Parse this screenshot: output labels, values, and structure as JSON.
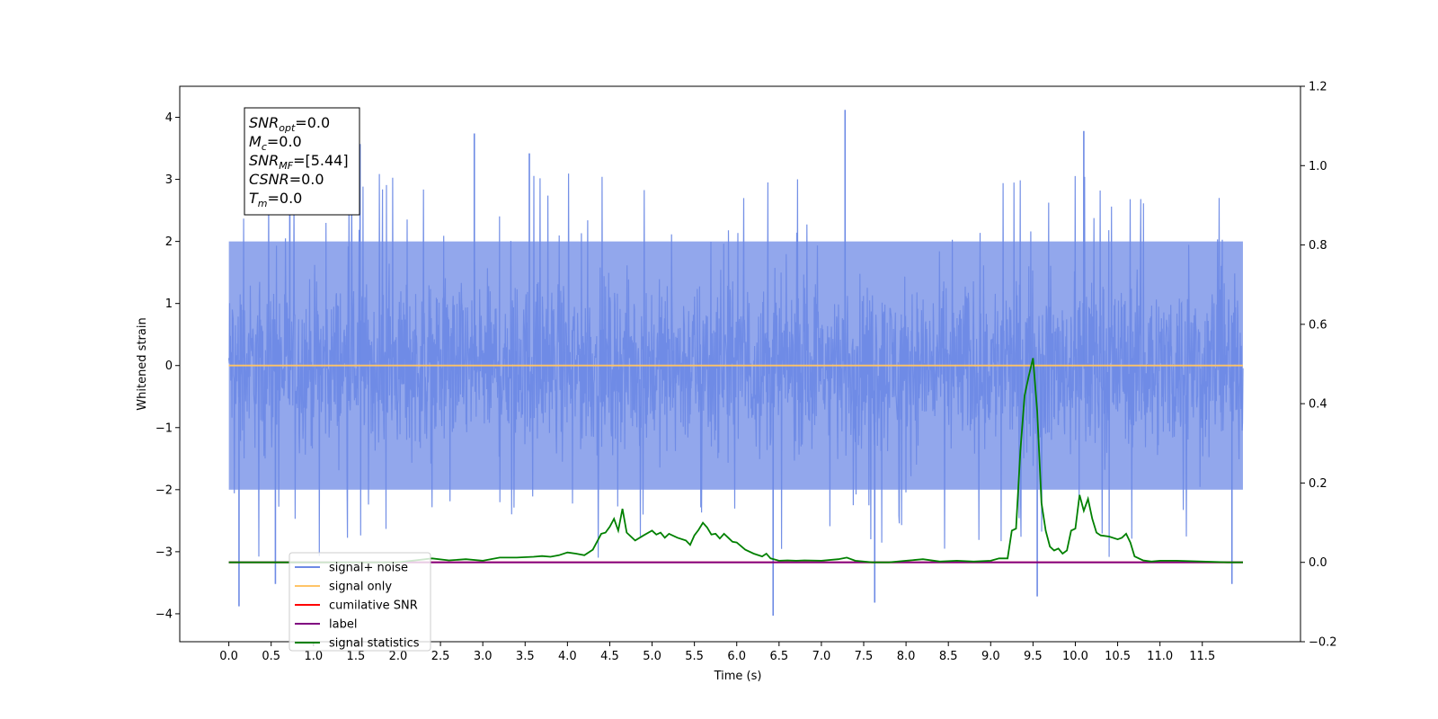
{
  "chart_data": {
    "type": "line",
    "title": "",
    "xlabel": "Time (s)",
    "ylabel": "Whitened strain",
    "xlim": [
      -0.58,
      12.66
    ],
    "ylim": [
      -4.45,
      4.5
    ],
    "ylim_right": [
      -0.2,
      1.2
    ],
    "x_ticks": [
      "0.0",
      "0.5",
      "1.0",
      "1.5",
      "2.0",
      "2.5",
      "3.0",
      "3.5",
      "4.0",
      "4.5",
      "5.0",
      "5.5",
      "6.0",
      "6.5",
      "7.0",
      "7.5",
      "8.0",
      "8.5",
      "9.0",
      "9.5",
      "10.0",
      "10.5",
      "11.0",
      "11.5"
    ],
    "y_ticks": [
      "4",
      "3",
      "2",
      "1",
      "0",
      "−1",
      "−2",
      "−3",
      "−4"
    ],
    "y_ticks_right": [
      "1.2",
      "1.0",
      "0.8",
      "0.6",
      "0.4",
      "0.2",
      "0.0",
      "−0.2"
    ],
    "grid": false,
    "legend_position": "lower-left",
    "info_box": {
      "position": "top-left",
      "lines": [
        {
          "main": "SNR",
          "sub": "opt",
          "value": "=0.0"
        },
        {
          "main": "M",
          "sub": "c",
          "value": "=0.0"
        },
        {
          "main": "SNR",
          "sub": "MF",
          "value": "=[5.44]"
        },
        {
          "main": "CSNR",
          "sub": "",
          "value": "=0.0"
        },
        {
          "main": "T",
          "sub": "m",
          "value": "=0.0"
        }
      ]
    },
    "noise_band": {
      "x_range": [
        0.0,
        11.98
      ],
      "typical_envelope": [
        -2.0,
        2.0
      ],
      "notable_spikes": [
        {
          "x": 0.12,
          "y": -3.88
        },
        {
          "x": 0.55,
          "y": -3.52
        },
        {
          "x": 0.72,
          "y": 3.62
        },
        {
          "x": 1.55,
          "y": 3.57
        },
        {
          "x": 2.9,
          "y": 3.74
        },
        {
          "x": 3.55,
          "y": 3.42
        },
        {
          "x": 6.43,
          "y": -4.03
        },
        {
          "x": 7.28,
          "y": 4.12
        },
        {
          "x": 7.63,
          "y": -3.82
        },
        {
          "x": 9.55,
          "y": -3.72
        },
        {
          "x": 10.1,
          "y": 3.78
        },
        {
          "x": 11.85,
          "y": -3.52
        }
      ]
    },
    "series": [
      {
        "name": "signal+ noise",
        "axis": "left",
        "color": "#6d8ae5",
        "x": [
          0.0,
          11.98
        ],
        "y": [
          0.0,
          0.0
        ]
      },
      {
        "name": "signal only",
        "axis": "left",
        "color": "#ffc466",
        "x": [
          0.0,
          11.98
        ],
        "y": [
          0.0,
          0.0
        ]
      },
      {
        "name": "cumilative SNR",
        "axis": "right",
        "color": "#ff0000",
        "x": [
          0.0,
          11.98
        ],
        "y": [
          0.0,
          0.0
        ]
      },
      {
        "name": "label",
        "axis": "right",
        "color": "#800080",
        "x": [
          0.0,
          11.98
        ],
        "y": [
          0.0,
          0.0
        ]
      },
      {
        "name": "signal statistics",
        "axis": "right",
        "color": "#008000",
        "x": [
          0.0,
          0.5,
          1.0,
          1.5,
          2.0,
          2.2,
          2.4,
          2.6,
          2.8,
          3.0,
          3.2,
          3.4,
          3.6,
          3.7,
          3.8,
          3.9,
          4.0,
          4.1,
          4.2,
          4.3,
          4.4,
          4.45,
          4.5,
          4.55,
          4.6,
          4.65,
          4.7,
          4.8,
          4.9,
          5.0,
          5.05,
          5.1,
          5.15,
          5.2,
          5.3,
          5.4,
          5.45,
          5.5,
          5.55,
          5.6,
          5.65,
          5.7,
          5.75,
          5.8,
          5.85,
          5.9,
          5.95,
          6.0,
          6.1,
          6.2,
          6.3,
          6.35,
          6.4,
          6.5,
          6.6,
          6.7,
          6.8,
          7.0,
          7.2,
          7.3,
          7.4,
          7.6,
          7.8,
          8.0,
          8.2,
          8.4,
          8.6,
          8.8,
          9.0,
          9.1,
          9.2,
          9.25,
          9.3,
          9.35,
          9.4,
          9.45,
          9.5,
          9.55,
          9.6,
          9.65,
          9.7,
          9.75,
          9.8,
          9.85,
          9.9,
          9.95,
          10.0,
          10.05,
          10.1,
          10.15,
          10.2,
          10.25,
          10.3,
          10.4,
          10.5,
          10.55,
          10.6,
          10.65,
          10.7,
          10.8,
          10.9,
          11.0,
          11.2,
          11.5,
          11.8,
          11.98
        ],
        "y": [
          0.0,
          0.0,
          0.0,
          0.0,
          0.0,
          0.005,
          0.01,
          0.005,
          0.008,
          0.004,
          0.012,
          0.012,
          0.014,
          0.016,
          0.014,
          0.018,
          0.025,
          0.022,
          0.018,
          0.032,
          0.072,
          0.075,
          0.09,
          0.11,
          0.08,
          0.135,
          0.075,
          0.055,
          0.068,
          0.08,
          0.07,
          0.075,
          0.062,
          0.072,
          0.062,
          0.055,
          0.044,
          0.068,
          0.082,
          0.1,
          0.088,
          0.07,
          0.072,
          0.06,
          0.072,
          0.062,
          0.052,
          0.05,
          0.032,
          0.022,
          0.015,
          0.022,
          0.01,
          0.004,
          0.005,
          0.004,
          0.005,
          0.004,
          0.008,
          0.012,
          0.004,
          0.0,
          0.0,
          0.004,
          0.008,
          0.002,
          0.004,
          0.002,
          0.004,
          0.01,
          0.01,
          0.08,
          0.085,
          0.28,
          0.42,
          0.47,
          0.515,
          0.38,
          0.15,
          0.08,
          0.04,
          0.03,
          0.035,
          0.022,
          0.03,
          0.08,
          0.085,
          0.17,
          0.13,
          0.16,
          0.11,
          0.075,
          0.068,
          0.065,
          0.058,
          0.062,
          0.072,
          0.05,
          0.015,
          0.005,
          0.002,
          0.004,
          0.004,
          0.002,
          0.0,
          0.0
        ]
      }
    ]
  }
}
